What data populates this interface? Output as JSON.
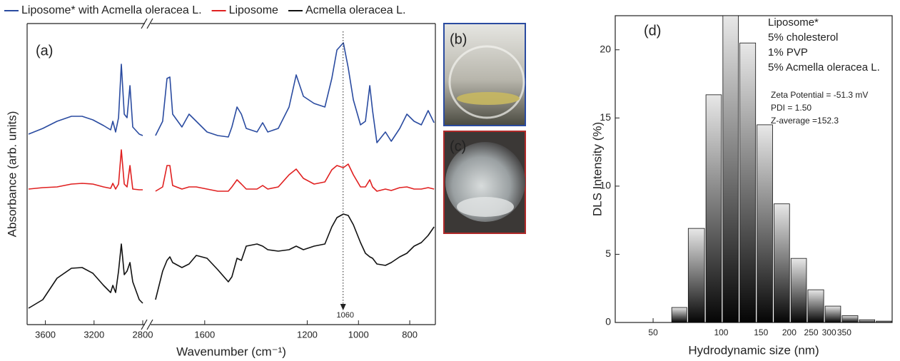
{
  "photo_labels": [
    "(b)",
    "(c)"
  ],
  "chart_data": [
    {
      "type": "line",
      "panel_label": "(a)",
      "xlabel": "Wavenumber (cm⁻¹)",
      "ylabel": "Absorbance (arb. units)",
      "x_segments": [
        [
          3750,
          2800
        ],
        [
          1800,
          700
        ]
      ],
      "ylim": [
        0,
        42.2
      ],
      "xticks": [
        3600,
        3200,
        2800,
        1600,
        1200,
        1000,
        800
      ],
      "x": [
        3738,
        3621,
        3504,
        3386,
        3298,
        3210,
        3122,
        3064,
        3046,
        3023,
        2999,
        2976,
        2952,
        2929,
        2905,
        2882,
        2829,
        2800,
        1792,
        1764,
        1747,
        1736,
        1725,
        1689,
        1661,
        1633,
        1591,
        1549,
        1508,
        1494,
        1474,
        1457,
        1438,
        1396,
        1374,
        1354,
        1313,
        1271,
        1243,
        1215,
        1173,
        1131,
        1104,
        1084,
        1059,
        1040,
        1020,
        992,
        973,
        956,
        945,
        928,
        895,
        872,
        839,
        811,
        783,
        755,
        728,
        705
      ],
      "series": [
        {
          "name": "Liposome* with Acmella oleracea L.",
          "color": "#2a4ba0",
          "values": [
            26.7,
            27.5,
            28.5,
            29.2,
            29.2,
            28.7,
            27.9,
            27.3,
            28.5,
            27,
            29,
            36.5,
            29.5,
            29,
            33.5,
            27.7,
            26.7,
            26.5,
            26.5,
            28.5,
            34.5,
            34.7,
            29.5,
            27.7,
            29.5,
            28.5,
            27,
            26.5,
            26.3,
            27.7,
            30.5,
            29.5,
            27.5,
            27,
            28.3,
            27,
            27.5,
            30.5,
            35,
            32,
            31,
            30.5,
            34.5,
            38.5,
            39.5,
            36,
            31.5,
            28,
            28.5,
            33.5,
            30,
            25.5,
            27,
            25.7,
            27.5,
            29.5,
            28.5,
            28,
            30,
            28.3
          ]
        },
        {
          "name": "Liposome",
          "color": "#e02020",
          "values": [
            19,
            19.2,
            19.3,
            19.7,
            19.8,
            19.7,
            19.3,
            19.1,
            19.8,
            19,
            19.7,
            24.5,
            19.7,
            19.3,
            22.3,
            19,
            18.9,
            18.9,
            18.7,
            19.3,
            22.3,
            22.3,
            19.5,
            19,
            19.3,
            19.3,
            19,
            18.7,
            18.7,
            19.3,
            20.3,
            19.7,
            19,
            19,
            19.5,
            19,
            19.3,
            21,
            21.8,
            20.5,
            19.7,
            20,
            21.7,
            22.3,
            22,
            22.5,
            21,
            19.3,
            19.3,
            20.3,
            19.3,
            18.7,
            19,
            18.8,
            19.2,
            19.3,
            19,
            19,
            19.2,
            19
          ]
        },
        {
          "name": "Acmella oleracea L.",
          "color": "#111111",
          "values": [
            2.3,
            3.5,
            6.5,
            7.9,
            8,
            7.2,
            5.5,
            4.5,
            5.5,
            4.5,
            7.5,
            11.3,
            7,
            7.5,
            8.7,
            6,
            3.5,
            3,
            3.5,
            7.5,
            9,
            9.5,
            8.7,
            8,
            8.5,
            9.7,
            9.3,
            7.7,
            6,
            6.7,
            9.3,
            9,
            11,
            11.3,
            11,
            10.5,
            10.3,
            10.5,
            11,
            10.5,
            11,
            11.3,
            13.7,
            15,
            15.5,
            15.3,
            14,
            11.5,
            10,
            9.5,
            9.3,
            8.5,
            8.3,
            8.7,
            9.5,
            10,
            11,
            11.5,
            12.5,
            13.7
          ]
        }
      ],
      "annotations": [
        {
          "x": 1060
        }
      ]
    },
    {
      "type": "histogram",
      "panel_label": "(d)",
      "xlabel": "Hydrodynamic size (nm)",
      "ylabel": "DLS Intensity (%)",
      "log_x": true,
      "xlim": [
        34,
        570
      ],
      "ylim": [
        0,
        22.5
      ],
      "xticks": [
        50,
        100,
        150,
        200,
        250,
        300,
        350
      ],
      "yticks": [
        0,
        5,
        10,
        15,
        20
      ],
      "bins": [
        60,
        71,
        85,
        101,
        120,
        143,
        170,
        202,
        240,
        286,
        340,
        405,
        481,
        570
      ],
      "values": [
        1.1,
        6.9,
        16.7,
        22.5,
        20.5,
        14.5,
        8.7,
        4.7,
        2.4,
        1.2,
        0.5,
        0.2,
        0.1
      ],
      "annotations": [
        "Liposome*",
        "5% cholesterol",
        "1% PVP",
        "5% Acmella oleracea L.",
        "Zeta Potential = -51.3 mV",
        "PDI = 1.50",
        "Z-average =152.3"
      ]
    }
  ]
}
